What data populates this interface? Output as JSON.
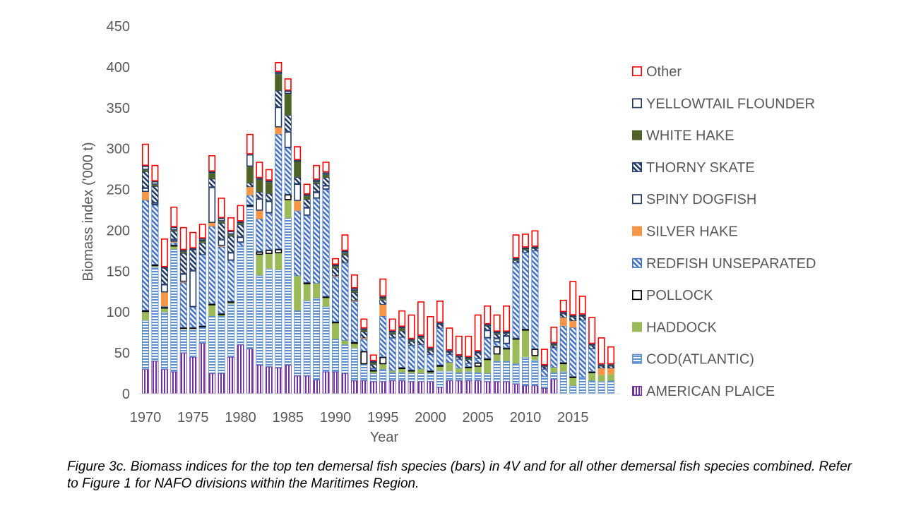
{
  "chart_data": {
    "type": "bar",
    "stacked": true,
    "xlabel": "Year",
    "ylabel": "Biomass index ('000 t)",
    "ylim": [
      0,
      450
    ],
    "yticks": [
      0,
      50,
      100,
      150,
      200,
      250,
      300,
      350,
      400,
      450
    ],
    "xtick_labels": [
      "1970",
      "1975",
      "1980",
      "1985",
      "1990",
      "1995",
      "2000",
      "2005",
      "2010",
      "2015"
    ],
    "grid": false,
    "legend_position": "right",
    "categories": [
      1970,
      1971,
      1972,
      1973,
      1974,
      1975,
      1976,
      1977,
      1978,
      1979,
      1980,
      1981,
      1982,
      1983,
      1984,
      1985,
      1986,
      1987,
      1988,
      1989,
      1990,
      1991,
      1992,
      1993,
      1994,
      1995,
      1996,
      1997,
      1998,
      1999,
      2000,
      2001,
      2002,
      2003,
      2004,
      2005,
      2006,
      2007,
      2008,
      2009,
      2010,
      2011,
      2012,
      2013,
      2014,
      2015,
      2016,
      2017,
      2018,
      2019
    ],
    "series": [
      {
        "name": "AMERICAN PLAICE",
        "color": "#7030a0",
        "pattern": "vlines",
        "values": [
          30,
          40,
          30,
          27,
          50,
          45,
          62,
          25,
          25,
          45,
          60,
          55,
          35,
          33,
          32,
          35,
          22,
          22,
          17,
          27,
          27,
          25,
          16,
          16,
          15,
          15,
          16,
          16,
          15,
          15,
          15,
          8,
          16,
          16,
          16,
          16,
          15,
          15,
          15,
          12,
          10,
          10,
          7,
          18,
          0,
          0,
          0,
          0,
          0,
          0
        ]
      },
      {
        "name": "COD(ATLANTIC)",
        "color": "#5b8fd0",
        "pattern": "hlines",
        "values": [
          60,
          115,
          70,
          150,
          30,
          35,
          20,
          70,
          70,
          65,
          120,
          175,
          110,
          120,
          120,
          180,
          80,
          92,
          100,
          80,
          40,
          35,
          40,
          20,
          10,
          15,
          10,
          10,
          10,
          10,
          10,
          20,
          12,
          10,
          11,
          10,
          10,
          25,
          25,
          25,
          35,
          31,
          14,
          8,
          27,
          10,
          20,
          16,
          15,
          16
        ]
      },
      {
        "name": "HADDOCK",
        "color": "#9bbb59",
        "pattern": "solid",
        "values": [
          10,
          2,
          5,
          4,
          0,
          0,
          0,
          14,
          2,
          2,
          0,
          0,
          25,
          18,
          20,
          22,
          42,
          20,
          18,
          11,
          20,
          5,
          5,
          0,
          3,
          6,
          2,
          5,
          3,
          5,
          2,
          5,
          10,
          5,
          5,
          7,
          17,
          8,
          15,
          30,
          33,
          5,
          0,
          6,
          10,
          10,
          0,
          10,
          8,
          8
        ]
      },
      {
        "name": "POLLOCK",
        "color": "#000000",
        "pattern": "outline",
        "values": [
          2,
          1,
          1,
          1,
          1,
          1,
          1,
          1,
          1,
          1,
          0,
          1,
          4,
          5,
          5,
          7,
          0,
          2,
          0,
          1,
          1,
          0,
          2,
          16,
          1,
          9,
          0,
          1,
          1,
          0,
          1,
          2,
          0,
          0,
          1,
          5,
          1,
          10,
          1,
          1,
          1,
          9,
          0,
          0,
          1,
          1,
          0,
          1,
          0,
          0
        ]
      },
      {
        "name": "REDFISH UNSEPARATED",
        "color": "#4472c4",
        "pattern": "diag",
        "values": [
          135,
          73,
          1,
          3,
          55,
          25,
          87,
          95,
          82,
          50,
          5,
          12,
          40,
          45,
          141,
          57,
          80,
          82,
          104,
          131,
          55,
          95,
          50,
          15,
          2,
          50,
          40,
          37,
          30,
          30,
          20,
          45,
          10,
          11,
          4,
          5,
          25,
          5,
          5,
          92,
          94,
          120,
          9,
          24,
          45,
          60,
          70,
          28,
          0,
          0
        ]
      },
      {
        "name": "SILVER HAKE",
        "color": "#f79646",
        "pattern": "solid",
        "values": [
          10,
          0,
          17,
          1,
          1,
          0,
          0,
          4,
          1,
          0,
          0,
          10,
          10,
          0,
          8,
          0,
          12,
          0,
          0,
          0,
          1,
          0,
          1,
          1,
          0,
          14,
          0,
          0,
          0,
          0,
          0,
          0,
          0,
          0,
          0,
          0,
          0,
          0,
          0,
          0,
          0,
          0,
          0,
          0,
          10,
          8,
          0,
          0,
          8,
          7
        ]
      },
      {
        "name": "SPINY DOGFISH",
        "color": "#1f3864",
        "pattern": "outline",
        "values": [
          5,
          3,
          10,
          3,
          10,
          45,
          0,
          44,
          8,
          10,
          7,
          0,
          15,
          15,
          25,
          20,
          21,
          10,
          8,
          5,
          0,
          0,
          0,
          0,
          0,
          0,
          0,
          0,
          0,
          0,
          0,
          0,
          0,
          0,
          0,
          0,
          10,
          5,
          10,
          0,
          0,
          0,
          0,
          0,
          0,
          0,
          0,
          0,
          0,
          0
        ]
      },
      {
        "name": "THORNY SKATE",
        "color": "#1f3864",
        "pattern": "diag",
        "values": [
          20,
          20,
          20,
          10,
          25,
          25,
          15,
          10,
          20,
          20,
          15,
          5,
          8,
          9,
          20,
          20,
          8,
          10,
          10,
          10,
          10,
          10,
          10,
          8,
          5,
          6,
          5,
          8,
          5,
          8,
          5,
          5,
          3,
          3,
          5,
          7,
          5,
          5,
          3,
          3,
          3,
          3,
          3,
          3,
          5,
          5,
          5,
          4,
          3,
          3
        ]
      },
      {
        "name": "WHITE HAKE",
        "color": "#4f6228",
        "pattern": "solid",
        "values": [
          2,
          2,
          0,
          1,
          2,
          0,
          2,
          7,
          2,
          2,
          2,
          20,
          15,
          14,
          20,
          26,
          20,
          4,
          2,
          3,
          2,
          2,
          2,
          2,
          2,
          2,
          2,
          3,
          1,
          1,
          1,
          0,
          1,
          1,
          2,
          0,
          1,
          1,
          1,
          1,
          2,
          1,
          1,
          1,
          1,
          1,
          1,
          1,
          1,
          1
        ]
      },
      {
        "name": "YELLOWTAIL FLOUNDER",
        "color": "#1f3864",
        "pattern": "outline",
        "values": [
          5,
          4,
          1,
          4,
          2,
          2,
          3,
          2,
          4,
          4,
          2,
          15,
          2,
          2,
          3,
          4,
          1,
          2,
          3,
          3,
          2,
          3,
          3,
          2,
          2,
          2,
          2,
          2,
          2,
          2,
          2,
          2,
          1,
          1,
          1,
          2,
          1,
          2,
          1,
          2,
          1,
          1,
          1,
          2,
          1,
          1,
          1,
          1,
          1,
          1
        ]
      },
      {
        "name": "Other",
        "color": "#ff0000",
        "pattern": "outline",
        "values": [
          27,
          20,
          35,
          25,
          28,
          20,
          18,
          20,
          25,
          17,
          20,
          25,
          20,
          14,
          12,
          15,
          17,
          13,
          18,
          13,
          8,
          20,
          17,
          12,
          8,
          22,
          15,
          20,
          30,
          42,
          39,
          27,
          28,
          24,
          26,
          45,
          23,
          21,
          32,
          29,
          17,
          20,
          20,
          20,
          15,
          42,
          23,
          33,
          33,
          22
        ]
      }
    ]
  },
  "legend_order": [
    "Other",
    "YELLOWTAIL FLOUNDER",
    "WHITE HAKE",
    "THORNY SKATE",
    "SPINY DOGFISH",
    "SILVER HAKE",
    "REDFISH UNSEPARATED",
    "POLLOCK",
    "HADDOCK",
    "COD(ATLANTIC)",
    "AMERICAN PLAICE"
  ],
  "caption": "Figure 3c. Biomass indices for the top ten demersal fish species (bars) in 4V and for all other demersal fish species combined.  Refer to Figure 1 for NAFO divisions within the Maritimes Region."
}
